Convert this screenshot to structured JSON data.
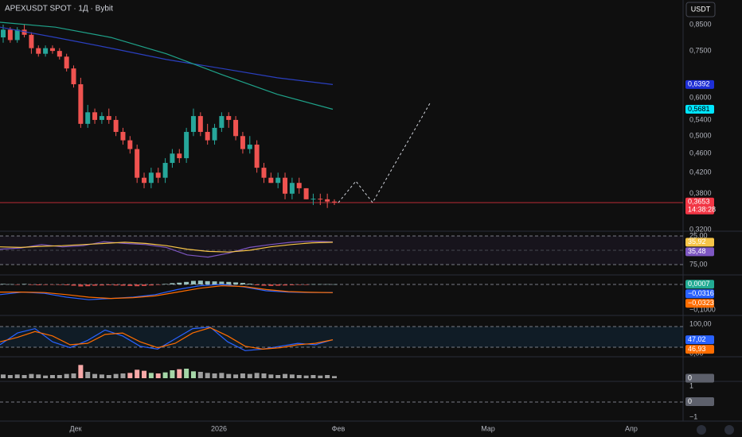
{
  "header": {
    "title": "APEXUSDT SPOT · 1Д · Bybit",
    "currency": "USDT"
  },
  "chart_data": {
    "type": "candlestick",
    "log_scale": true,
    "ylim": [
      0.319,
      0.956
    ],
    "up_color": "#26a69a",
    "down_color": "#ef5350",
    "yticks": [
      {
        "value": 0.85,
        "label": "0,8500"
      },
      {
        "value": 0.75,
        "label": "0,7500"
      },
      {
        "value": 0.6,
        "label": "0,6000"
      },
      {
        "value": 0.54,
        "label": "0,5400"
      },
      {
        "value": 0.5,
        "label": "0,5000"
      },
      {
        "value": 0.46,
        "label": "0,4600"
      },
      {
        "value": 0.42,
        "label": "0,4200"
      },
      {
        "value": 0.38,
        "label": "0,3800"
      },
      {
        "value": 0.32,
        "label": "0,3200"
      }
    ],
    "candles": [
      [
        0.8,
        0.85,
        0.78,
        0.83
      ],
      [
        0.83,
        0.84,
        0.78,
        0.79
      ],
      [
        0.79,
        0.84,
        0.78,
        0.83
      ],
      [
        0.83,
        0.85,
        0.8,
        0.81
      ],
      [
        0.81,
        0.82,
        0.74,
        0.76
      ],
      [
        0.76,
        0.77,
        0.73,
        0.74
      ],
      [
        0.74,
        0.77,
        0.73,
        0.76
      ],
      [
        0.76,
        0.77,
        0.74,
        0.75
      ],
      [
        0.75,
        0.76,
        0.72,
        0.73
      ],
      [
        0.73,
        0.74,
        0.68,
        0.69
      ],
      [
        0.69,
        0.7,
        0.63,
        0.64
      ],
      [
        0.64,
        0.66,
        0.52,
        0.53
      ],
      [
        0.53,
        0.58,
        0.52,
        0.56
      ],
      [
        0.56,
        0.57,
        0.53,
        0.54
      ],
      [
        0.54,
        0.56,
        0.53,
        0.55
      ],
      [
        0.55,
        0.57,
        0.53,
        0.54
      ],
      [
        0.54,
        0.55,
        0.5,
        0.51
      ],
      [
        0.51,
        0.52,
        0.48,
        0.49
      ],
      [
        0.49,
        0.5,
        0.46,
        0.47
      ],
      [
        0.47,
        0.48,
        0.4,
        0.41
      ],
      [
        0.41,
        0.42,
        0.39,
        0.4
      ],
      [
        0.4,
        0.43,
        0.39,
        0.42
      ],
      [
        0.42,
        0.43,
        0.4,
        0.41
      ],
      [
        0.41,
        0.45,
        0.4,
        0.44
      ],
      [
        0.44,
        0.47,
        0.43,
        0.46
      ],
      [
        0.46,
        0.47,
        0.44,
        0.45
      ],
      [
        0.45,
        0.52,
        0.44,
        0.51
      ],
      [
        0.51,
        0.57,
        0.5,
        0.55
      ],
      [
        0.55,
        0.56,
        0.5,
        0.51
      ],
      [
        0.51,
        0.53,
        0.48,
        0.49
      ],
      [
        0.49,
        0.53,
        0.48,
        0.52
      ],
      [
        0.52,
        0.56,
        0.51,
        0.55
      ],
      [
        0.55,
        0.56,
        0.52,
        0.54
      ],
      [
        0.54,
        0.55,
        0.49,
        0.5
      ],
      [
        0.5,
        0.51,
        0.46,
        0.47
      ],
      [
        0.47,
        0.5,
        0.46,
        0.48
      ],
      [
        0.48,
        0.49,
        0.42,
        0.43
      ],
      [
        0.43,
        0.44,
        0.4,
        0.41
      ],
      [
        0.41,
        0.42,
        0.4,
        0.4
      ],
      [
        0.4,
        0.42,
        0.39,
        0.41
      ],
      [
        0.41,
        0.42,
        0.37,
        0.38
      ],
      [
        0.38,
        0.41,
        0.37,
        0.4
      ],
      [
        0.4,
        0.41,
        0.38,
        0.39
      ],
      [
        0.39,
        0.39,
        0.37,
        0.37
      ],
      [
        0.37,
        0.38,
        0.36,
        0.371
      ],
      [
        0.371,
        0.38,
        0.36,
        0.37
      ],
      [
        0.37,
        0.38,
        0.355,
        0.366
      ],
      [
        0.366,
        0.37,
        0.36,
        0.3653
      ]
    ],
    "series": [
      {
        "color": "#2a3fbf",
        "values": [
          0.84,
          0.8,
          0.76,
          0.72,
          0.69,
          0.66,
          0.6392
        ]
      },
      {
        "color": "#1fa38a",
        "values": [
          0.86,
          0.84,
          0.8,
          0.74,
          0.67,
          0.61,
          0.5681
        ]
      }
    ],
    "price_badges": [
      {
        "value": 0.6392,
        "label": "0,6392",
        "color": "#1e2fd6"
      },
      {
        "value": 0.5681,
        "label": "0,5681",
        "color": "#00e5ff"
      },
      {
        "value": 0.3653,
        "label": "0,3653",
        "color": "#f23645"
      }
    ],
    "countdown": "14:38:28",
    "xlabels": [
      "Дек",
      "2026",
      "Фев",
      "Мар",
      "Апр"
    ]
  },
  "panes": [
    {
      "ylim": [
        25,
        75
      ],
      "ticks": [
        {
          "value": 75,
          "label": "75,00"
        },
        {
          "value": 25,
          "label": "25,00"
        }
      ],
      "series": [
        {
          "color": "#7e57c2",
          "values": [
            48,
            46,
            40,
            44,
            42,
            35,
            38,
            40,
            45,
            58,
            62,
            55,
            45,
            40,
            36,
            34,
            35.48
          ]
        },
        {
          "color": "#f7c548",
          "values": [
            44,
            45,
            43,
            42,
            40,
            38,
            36,
            38,
            42,
            48,
            52,
            53,
            50,
            44,
            40,
            37,
            35.92
          ]
        }
      ],
      "badges": [
        {
          "value": 35.92,
          "label": "35,92",
          "color": "#f7c548"
        },
        {
          "value": 35.48,
          "label": "35,48",
          "color": "#7e57c2"
        }
      ]
    },
    {
      "ylim": [
        -0.1,
        0
      ],
      "ticks": [
        {
          "value": -0.1,
          "label": "−0,1000"
        }
      ],
      "histogram": [
        0.002,
        0.001,
        -0.001,
        0.002,
        -0.002,
        -0.003,
        -0.002,
        -0.001,
        -0.002,
        -0.003,
        -0.005,
        -0.008,
        -0.007,
        -0.005,
        -0.004,
        -0.003,
        -0.004,
        -0.005,
        -0.006,
        -0.007,
        -0.006,
        -0.004,
        -0.002,
        0.002,
        0.005,
        0.007,
        0.01,
        0.014,
        0.015,
        0.013,
        0.012,
        0.011,
        0.01,
        0.008,
        0.006,
        0.003,
        -0.003,
        -0.005,
        -0.006,
        -0.005,
        -0.004,
        -0.003,
        -0.002,
        -0.002,
        0.001,
        0.001,
        0.001,
        0.0007
      ],
      "series": [
        {
          "color": "#2962ff",
          "values": [
            -0.04,
            -0.03,
            -0.035,
            -0.05,
            -0.06,
            -0.055,
            -0.05,
            -0.04,
            -0.02,
            -0.005,
            0.0,
            -0.01,
            -0.025,
            -0.03,
            -0.032,
            -0.0316
          ]
        },
        {
          "color": "#ff6d00",
          "values": [
            -0.03,
            -0.03,
            -0.032,
            -0.04,
            -0.05,
            -0.055,
            -0.052,
            -0.045,
            -0.03,
            -0.015,
            -0.005,
            -0.008,
            -0.02,
            -0.028,
            -0.031,
            -0.0323
          ]
        }
      ],
      "badges": [
        {
          "value": 0.0007,
          "label": "0,0007",
          "color": "#22ab94"
        },
        {
          "value": -0.0316,
          "label": "−0,0316",
          "color": "#2962ff"
        },
        {
          "value": -0.0323,
          "label": "−0,0323",
          "color": "#ff6d00"
        }
      ]
    },
    {
      "ylim": [
        0,
        100
      ],
      "ticks": [
        {
          "value": 100,
          "label": "100,00"
        },
        {
          "value": 0,
          "label": "0,00"
        }
      ],
      "series": [
        {
          "color": "#2962ff",
          "values": [
            30,
            70,
            85,
            40,
            20,
            45,
            80,
            60,
            25,
            15,
            50,
            85,
            90,
            40,
            10,
            15,
            25,
            35,
            30,
            47.02
          ]
        },
        {
          "color": "#ff6d00",
          "values": [
            40,
            55,
            75,
            60,
            30,
            35,
            65,
            70,
            40,
            20,
            35,
            70,
            88,
            60,
            25,
            15,
            20,
            30,
            35,
            46.93
          ]
        }
      ],
      "badges": [
        {
          "value": 47.02,
          "label": "47,02",
          "color": "#2962ff"
        },
        {
          "value": 46.93,
          "label": "46,93",
          "color": "#ff6d00"
        }
      ]
    },
    {
      "ylim": [
        0,
        30
      ],
      "ticks": [],
      "volume": [
        7,
        6,
        7,
        6,
        8,
        7,
        5,
        6,
        6,
        8,
        9,
        25,
        12,
        8,
        7,
        6,
        8,
        9,
        10,
        16,
        14,
        10,
        9,
        11,
        15,
        17,
        18,
        13,
        12,
        10,
        9,
        10,
        8,
        7,
        9,
        8,
        10,
        9,
        7,
        6,
        8,
        7,
        6,
        5,
        6,
        5,
        6,
        4
      ],
      "badges": [
        {
          "value": 0,
          "label": "0",
          "color": "#5d606b"
        }
      ]
    },
    {
      "ylim": [
        -1,
        1
      ],
      "ticks": [
        {
          "value": 1,
          "label": "1"
        },
        {
          "value": -1,
          "label": "−1"
        }
      ],
      "badges": [
        {
          "value": 0,
          "label": "0",
          "color": "#5d606b"
        }
      ]
    }
  ]
}
